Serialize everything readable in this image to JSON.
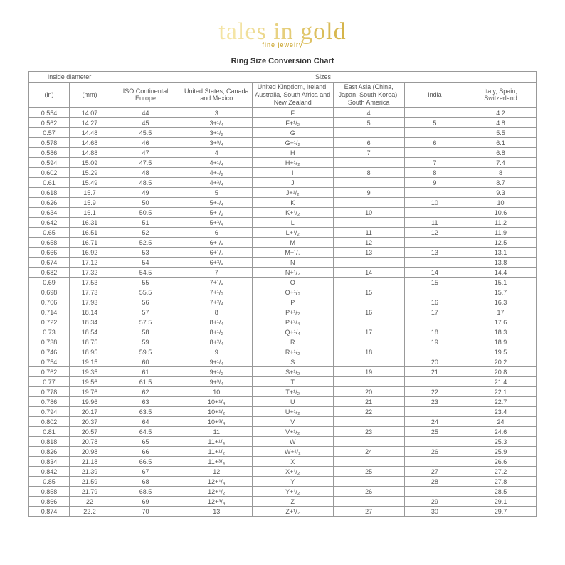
{
  "logo": {
    "main": "tales in gold",
    "sub": "fine jewelry"
  },
  "title": "Ring Size Conversion Chart",
  "headers": {
    "group_diameter": "Inside diameter",
    "group_sizes": "Sizes",
    "in": "(in)",
    "mm": "(mm)",
    "iso": "ISO Continental Europe",
    "us": "United States, Canada and Mexico",
    "uk": "United Kingdom, Ireland, Australia, South Africa and New Zealand",
    "asia": "East Asia (China, Japan, South Korea), South America",
    "india": "India",
    "italy": "Italy, Spain, Switzerland"
  },
  "style": {
    "border_color": "#999999",
    "text_color": "#555555",
    "background": "#ffffff",
    "font_size_body": 9,
    "font_size_title": 11
  },
  "rows": [
    [
      "0.554",
      "14.07",
      "44",
      "3",
      "F",
      "4",
      "",
      "4.2"
    ],
    [
      "0.562",
      "14.27",
      "45",
      "3+¹/₄",
      "F+¹/₂",
      "5",
      "5",
      "4.8"
    ],
    [
      "0.57",
      "14.48",
      "45.5",
      "3+¹/₂",
      "G",
      "",
      "",
      "5.5"
    ],
    [
      "0.578",
      "14.68",
      "46",
      "3+³/₄",
      "G+¹/₂",
      "6",
      "6",
      "6.1"
    ],
    [
      "0.586",
      "14.88",
      "47",
      "4",
      "H",
      "7",
      "",
      "6.8"
    ],
    [
      "0.594",
      "15.09",
      "47.5",
      "4+¹/₄",
      "H+¹/₂",
      "",
      "7",
      "7.4"
    ],
    [
      "0.602",
      "15.29",
      "48",
      "4+¹/₂",
      "I",
      "8",
      "8",
      "8"
    ],
    [
      "0.61",
      "15.49",
      "48.5",
      "4+³/₄",
      "J",
      "",
      "9",
      "8.7"
    ],
    [
      "0.618",
      "15.7",
      "49",
      "5",
      "J+¹/₂",
      "9",
      "",
      "9.3"
    ],
    [
      "0.626",
      "15.9",
      "50",
      "5+¹/₄",
      "K",
      "",
      "10",
      "10"
    ],
    [
      "0.634",
      "16.1",
      "50.5",
      "5+¹/₂",
      "K+¹/₂",
      "10",
      "",
      "10.6"
    ],
    [
      "0.642",
      "16.31",
      "51",
      "5+³/₄",
      "L",
      "",
      "11",
      "11.2"
    ],
    [
      "0.65",
      "16.51",
      "52",
      "6",
      "L+¹/₂",
      "11",
      "12",
      "11.9"
    ],
    [
      "0.658",
      "16.71",
      "52.5",
      "6+¹/₄",
      "M",
      "12",
      "",
      "12.5"
    ],
    [
      "0.666",
      "16.92",
      "53",
      "6+¹/₂",
      "M+¹/₂",
      "13",
      "13",
      "13.1"
    ],
    [
      "0.674",
      "17.12",
      "54",
      "6+³/₄",
      "N",
      "",
      "",
      "13.8"
    ],
    [
      "0.682",
      "17.32",
      "54.5",
      "7",
      "N+¹/₂",
      "14",
      "14",
      "14.4"
    ],
    [
      "0.69",
      "17.53",
      "55",
      "7+¹/₄",
      "O",
      "",
      "15",
      "15.1"
    ],
    [
      "0.698",
      "17.73",
      "55.5",
      "7+¹/₂",
      "O+¹/₂",
      "15",
      "",
      "15.7"
    ],
    [
      "0.706",
      "17.93",
      "56",
      "7+³/₄",
      "P",
      "",
      "16",
      "16.3"
    ],
    [
      "0.714",
      "18.14",
      "57",
      "8",
      "P+¹/₂",
      "16",
      "17",
      "17"
    ],
    [
      "0.722",
      "18.34",
      "57.5",
      "8+¹/₄",
      "P+³/₄",
      "",
      "",
      "17.6"
    ],
    [
      "0.73",
      "18.54",
      "58",
      "8+¹/₂",
      "Q+¹/₄",
      "17",
      "18",
      "18.3"
    ],
    [
      "0.738",
      "18.75",
      "59",
      "8+³/₄",
      "R",
      "",
      "19",
      "18.9"
    ],
    [
      "0.746",
      "18.95",
      "59.5",
      "9",
      "R+¹/₂",
      "18",
      "",
      "19.5"
    ],
    [
      "0.754",
      "19.15",
      "60",
      "9+¹/₄",
      "S",
      "",
      "20",
      "20.2"
    ],
    [
      "0.762",
      "19.35",
      "61",
      "9+¹/₂",
      "S+¹/₂",
      "19",
      "21",
      "20.8"
    ],
    [
      "0.77",
      "19.56",
      "61.5",
      "9+³/₄",
      "T",
      "",
      "",
      "21.4"
    ],
    [
      "0.778",
      "19.76",
      "62",
      "10",
      "T+¹/₂",
      "20",
      "22",
      "22.1"
    ],
    [
      "0.786",
      "19.96",
      "63",
      "10+¹/₄",
      "U",
      "21",
      "23",
      "22.7"
    ],
    [
      "0.794",
      "20.17",
      "63.5",
      "10+¹/₂",
      "U+¹/₂",
      "22",
      "",
      "23.4"
    ],
    [
      "0.802",
      "20.37",
      "64",
      "10+³/₄",
      "V",
      "",
      "24",
      "24"
    ],
    [
      "0.81",
      "20.57",
      "64.5",
      "11",
      "V+¹/₂",
      "23",
      "25",
      "24.6"
    ],
    [
      "0.818",
      "20.78",
      "65",
      "11+¹/₄",
      "W",
      "",
      "",
      "25.3"
    ],
    [
      "0.826",
      "20.98",
      "66",
      "11+¹/₂",
      "W+¹/₂",
      "24",
      "26",
      "25.9"
    ],
    [
      "0.834",
      "21.18",
      "66.5",
      "11+³/₄",
      "X",
      "",
      "",
      "26.6"
    ],
    [
      "0.842",
      "21.39",
      "67",
      "12",
      "X+¹/₂",
      "25",
      "27",
      "27.2"
    ],
    [
      "0.85",
      "21.59",
      "68",
      "12+¹/₄",
      "Y",
      "",
      "28",
      "27.8"
    ],
    [
      "0.858",
      "21.79",
      "68.5",
      "12+¹/₂",
      "Y+¹/₂",
      "26",
      "",
      "28.5"
    ],
    [
      "0.866",
      "22",
      "69",
      "12+³/₄",
      "Z",
      "",
      "29",
      "29.1"
    ],
    [
      "0.874",
      "22.2",
      "70",
      "13",
      "Z+¹/₂",
      "27",
      "30",
      "29.7"
    ]
  ]
}
